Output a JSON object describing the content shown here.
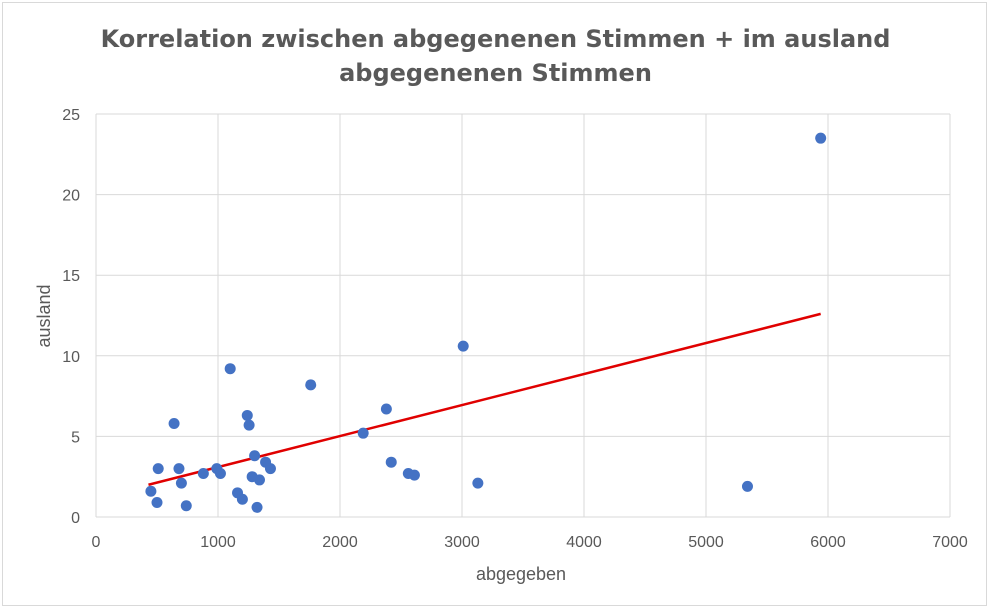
{
  "chart_data": {
    "type": "scatter",
    "title_lines": [
      "Korrelation zwischen abgegenenen Stimmen + im ausland",
      "abgegenenen Stimmen"
    ],
    "xlabel": "abgegeben",
    "ylabel": "ausland",
    "xlim": [
      0,
      7000
    ],
    "ylim": [
      0,
      25
    ],
    "x_ticks": [
      0,
      1000,
      2000,
      3000,
      4000,
      5000,
      6000,
      7000
    ],
    "y_ticks": [
      0,
      5,
      10,
      15,
      20,
      25
    ],
    "grid": true,
    "legend": "none",
    "colors": {
      "points": "#4472c4",
      "trendline": "#e00000",
      "grid": "#d9d9d9"
    },
    "points": [
      {
        "x": 450,
        "y": 1.6
      },
      {
        "x": 500,
        "y": 0.9
      },
      {
        "x": 510,
        "y": 3.0
      },
      {
        "x": 640,
        "y": 5.8
      },
      {
        "x": 680,
        "y": 3.0
      },
      {
        "x": 700,
        "y": 2.1
      },
      {
        "x": 740,
        "y": 0.7
      },
      {
        "x": 880,
        "y": 2.7
      },
      {
        "x": 990,
        "y": 3.0
      },
      {
        "x": 1020,
        "y": 2.7
      },
      {
        "x": 1100,
        "y": 9.2
      },
      {
        "x": 1160,
        "y": 1.5
      },
      {
        "x": 1200,
        "y": 1.1
      },
      {
        "x": 1240,
        "y": 6.3
      },
      {
        "x": 1255,
        "y": 5.7
      },
      {
        "x": 1280,
        "y": 2.5
      },
      {
        "x": 1300,
        "y": 3.8
      },
      {
        "x": 1320,
        "y": 0.6
      },
      {
        "x": 1340,
        "y": 2.3
      },
      {
        "x": 1390,
        "y": 3.4
      },
      {
        "x": 1430,
        "y": 3.0
      },
      {
        "x": 1760,
        "y": 8.2
      },
      {
        "x": 2190,
        "y": 5.2
      },
      {
        "x": 2380,
        "y": 6.7
      },
      {
        "x": 2420,
        "y": 3.4
      },
      {
        "x": 2560,
        "y": 2.7
      },
      {
        "x": 2610,
        "y": 2.6
      },
      {
        "x": 3010,
        "y": 10.6
      },
      {
        "x": 3130,
        "y": 2.1
      },
      {
        "x": 5340,
        "y": 1.9
      },
      {
        "x": 5940,
        "y": 23.5
      }
    ],
    "trendline": {
      "x": [
        430,
        5940
      ],
      "y": [
        2.0,
        12.6
      ]
    }
  }
}
